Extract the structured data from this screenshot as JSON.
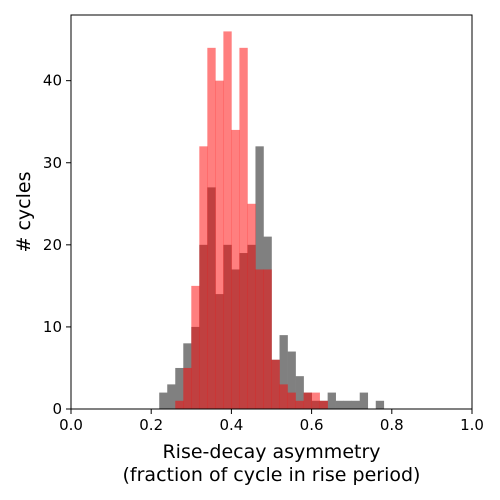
{
  "chart_data": {
    "type": "bar",
    "title": "",
    "xlabel_line1": "Rise-decay asymmetry",
    "xlabel_line2": "(fraction of cycle in rise period)",
    "ylabel": "# cycles",
    "xlim": [
      0.0,
      1.0
    ],
    "ylim": [
      0,
      48
    ],
    "xticks": [
      "0.0",
      "0.2",
      "0.4",
      "0.6",
      "0.8",
      "1.0"
    ],
    "yticks": [
      "0",
      "10",
      "20",
      "30",
      "40"
    ],
    "bin_width": 0.02,
    "grid": false,
    "legend": "none",
    "series": [
      {
        "color": "#808080",
        "opacity": 1.0,
        "bin_starts": [
          0.22,
          0.24,
          0.26,
          0.28,
          0.3,
          0.32,
          0.34,
          0.36,
          0.38,
          0.4,
          0.42,
          0.44,
          0.46,
          0.48,
          0.5,
          0.52,
          0.54,
          0.56,
          0.58,
          0.6,
          0.62,
          0.64,
          0.66,
          0.68,
          0.7,
          0.72,
          0.74,
          0.76
        ],
        "values": [
          2,
          3,
          5,
          8,
          10,
          20,
          27,
          14,
          20,
          17,
          19,
          20,
          32,
          21,
          6,
          9,
          7,
          4,
          2,
          1,
          1,
          2,
          1,
          1,
          1,
          2,
          0,
          1
        ]
      },
      {
        "color": "#ff0000",
        "opacity": 0.5,
        "bin_starts": [
          0.26,
          0.28,
          0.3,
          0.32,
          0.34,
          0.36,
          0.38,
          0.4,
          0.42,
          0.44,
          0.46,
          0.48,
          0.5,
          0.52,
          0.54,
          0.56,
          0.58,
          0.6,
          0.62
        ],
        "values": [
          1,
          5,
          15,
          32,
          44,
          40,
          46,
          34,
          44,
          25,
          17,
          17,
          6,
          3,
          2,
          1,
          2,
          2,
          1
        ]
      }
    ]
  }
}
